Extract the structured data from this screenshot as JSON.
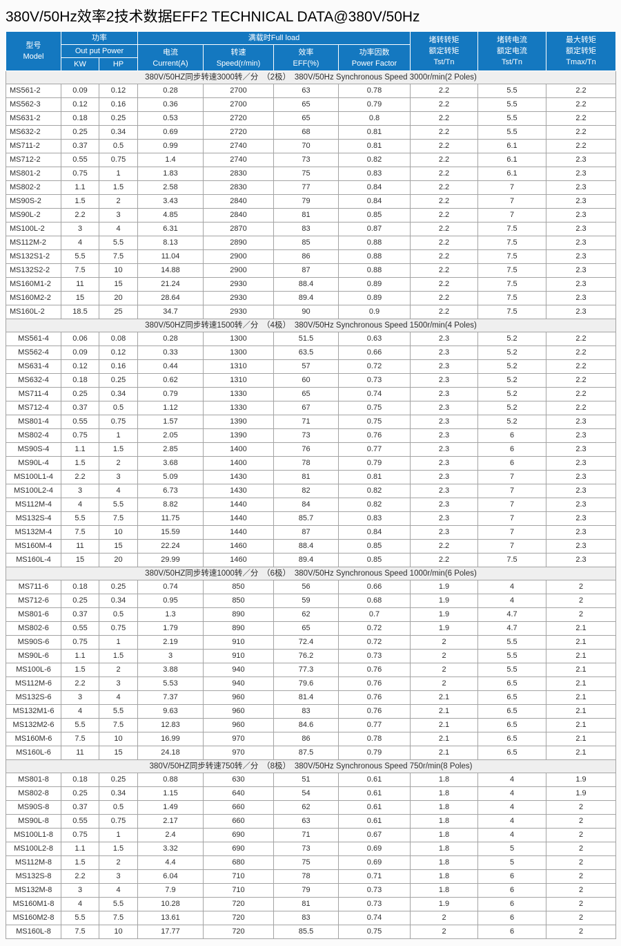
{
  "title": "380V/50Hz效率2技术数据EFF2 TECHNICAL DATA@380V/50Hz",
  "colors": {
    "header_bg": "#1478c0",
    "header_text": "#ffffff",
    "section_bg": "#efefef",
    "grid_line": "#a3a3a3"
  },
  "table": {
    "header": {
      "model": {
        "cn": "型号",
        "en": "Model"
      },
      "power": {
        "cn": "功率",
        "en": "Out put Power",
        "kw": "KW",
        "hp": "HP"
      },
      "full_load": {
        "label": "满载时Full load",
        "current": {
          "cn": "电流",
          "en": "Current(A)"
        },
        "speed": {
          "cn": "转速",
          "en": "Speed(r/min)"
        },
        "eff": {
          "cn": "效率",
          "en": "EFF(%)"
        },
        "power_factor": {
          "cn": "功率因数",
          "en": "Power Factor"
        }
      },
      "locked_rotor_torque": {
        "cn1": "堵转转矩",
        "cn2": "额定转矩",
        "en": "Tst/Tn"
      },
      "locked_rotor_current": {
        "cn1": "堵转电流",
        "cn2": "额定电流",
        "en": "Tst/Tn"
      },
      "max_torque": {
        "cn1": "最大转矩",
        "cn2": "额定转矩",
        "en": "Tmax/Tn"
      }
    },
    "sections": [
      {
        "label": "380V/50HZ同步转速3000转／分　（2极）　380V/50Hz Synchronous Speed 3000r/min(2 Poles)",
        "rows": [
          [
            "MS561-2",
            "0.09",
            "0.12",
            "0.28",
            "2700",
            "63",
            "0.78",
            "2.2",
            "5.5",
            "2.2"
          ],
          [
            "MS562-3",
            "0.12",
            "0.16",
            "0.36",
            "2700",
            "65",
            "0.79",
            "2.2",
            "5.5",
            "2.2"
          ],
          [
            "MS631-2",
            "0.18",
            "0.25",
            "0.53",
            "2720",
            "65",
            "0.8",
            "2.2",
            "5.5",
            "2.2"
          ],
          [
            "MS632-2",
            "0.25",
            "0.34",
            "0.69",
            "2720",
            "68",
            "0.81",
            "2.2",
            "5.5",
            "2.2"
          ],
          [
            "MS711-2",
            "0.37",
            "0.5",
            "0.99",
            "2740",
            "70",
            "0.81",
            "2.2",
            "6.1",
            "2.2"
          ],
          [
            "MS712-2",
            "0.55",
            "0.75",
            "1.4",
            "2740",
            "73",
            "0.82",
            "2.2",
            "6.1",
            "2.3"
          ],
          [
            "MS801-2",
            "0.75",
            "1",
            "1.83",
            "2830",
            "75",
            "0.83",
            "2.2",
            "6.1",
            "2.3"
          ],
          [
            "MS802-2",
            "1.1",
            "1.5",
            "2.58",
            "2830",
            "77",
            "0.84",
            "2.2",
            "7",
            "2.3"
          ],
          [
            "MS90S-2",
            "1.5",
            "2",
            "3.43",
            "2840",
            "79",
            "0.84",
            "2.2",
            "7",
            "2.3"
          ],
          [
            "MS90L-2",
            "2.2",
            "3",
            "4.85",
            "2840",
            "81",
            "0.85",
            "2.2",
            "7",
            "2.3"
          ],
          [
            "MS100L-2",
            "3",
            "4",
            "6.31",
            "2870",
            "83",
            "0.87",
            "2.2",
            "7.5",
            "2.3"
          ],
          [
            "MS112M-2",
            "4",
            "5.5",
            "8.13",
            "2890",
            "85",
            "0.88",
            "2.2",
            "7.5",
            "2.3"
          ],
          [
            "MS132S1-2",
            "5.5",
            "7.5",
            "11.04",
            "2900",
            "86",
            "0.88",
            "2.2",
            "7.5",
            "2.3"
          ],
          [
            "MS132S2-2",
            "7.5",
            "10",
            "14.88",
            "2900",
            "87",
            "0.88",
            "2.2",
            "7.5",
            "2.3"
          ],
          [
            "MS160M1-2",
            "11",
            "15",
            "21.24",
            "2930",
            "88.4",
            "0.89",
            "2.2",
            "7.5",
            "2.3"
          ],
          [
            "MS160M2-2",
            "15",
            "20",
            "28.64",
            "2930",
            "89.4",
            "0.89",
            "2.2",
            "7.5",
            "2.3"
          ],
          [
            "MS160L-2",
            "18.5",
            "25",
            "34.7",
            "2930",
            "90",
            "0.9",
            "2.2",
            "7.5",
            "2.3"
          ]
        ]
      },
      {
        "label": "380V/50HZ同步转速1500转／分　（4极）　380V/50Hz Synchronous Speed 1500r/min(4 Poles)",
        "rows": [
          [
            "MS561-4",
            "0.06",
            "0.08",
            "0.28",
            "1300",
            "51.5",
            "0.63",
            "2.3",
            "5.2",
            "2.2"
          ],
          [
            "MS562-4",
            "0.09",
            "0.12",
            "0.33",
            "1300",
            "63.5",
            "0.66",
            "2.3",
            "5.2",
            "2.2"
          ],
          [
            "MS631-4",
            "0.12",
            "0.16",
            "0.44",
            "1310",
            "57",
            "0.72",
            "2.3",
            "5.2",
            "2.2"
          ],
          [
            "MS632-4",
            "0.18",
            "0.25",
            "0.62",
            "1310",
            "60",
            "0.73",
            "2.3",
            "5.2",
            "2.2"
          ],
          [
            "MS711-4",
            "0.25",
            "0.34",
            "0.79",
            "1330",
            "65",
            "0.74",
            "2.3",
            "5.2",
            "2.2"
          ],
          [
            "MS712-4",
            "0.37",
            "0.5",
            "1.12",
            "1330",
            "67",
            "0.75",
            "2.3",
            "5.2",
            "2.2"
          ],
          [
            "MS801-4",
            "0.55",
            "0.75",
            "1.57",
            "1390",
            "71",
            "0.75",
            "2.3",
            "5.2",
            "2.3"
          ],
          [
            "MS802-4",
            "0.75",
            "1",
            "2.05",
            "1390",
            "73",
            "0.76",
            "2.3",
            "6",
            "2.3"
          ],
          [
            "MS90S-4",
            "1.1",
            "1.5",
            "2.85",
            "1400",
            "76",
            "0.77",
            "2.3",
            "6",
            "2.3"
          ],
          [
            "MS90L-4",
            "1.5",
            "2",
            "3.68",
            "1400",
            "78",
            "0.79",
            "2.3",
            "6",
            "2.3"
          ],
          [
            "MS100L1-4",
            "2.2",
            "3",
            "5.09",
            "1430",
            "81",
            "0.81",
            "2.3",
            "7",
            "2.3"
          ],
          [
            "MS100L2-4",
            "3",
            "4",
            "6.73",
            "1430",
            "82",
            "0.82",
            "2.3",
            "7",
            "2.3"
          ],
          [
            "MS112M-4",
            "4",
            "5.5",
            "8.82",
            "1440",
            "84",
            "0.82",
            "2.3",
            "7",
            "2.3"
          ],
          [
            "MS132S-4",
            "5.5",
            "7.5",
            "11.75",
            "1440",
            "85.7",
            "0.83",
            "2.3",
            "7",
            "2.3"
          ],
          [
            "MS132M-4",
            "7.5",
            "10",
            "15.59",
            "1440",
            "87",
            "0.84",
            "2.3",
            "7",
            "2.3"
          ],
          [
            "MS160M-4",
            "11",
            "15",
            "22.24",
            "1460",
            "88.4",
            "0.85",
            "2.2",
            "7",
            "2.3"
          ],
          [
            "MS160L-4",
            "15",
            "20",
            "29.99",
            "1460",
            "89.4",
            "0.85",
            "2.2",
            "7.5",
            "2.3"
          ]
        ]
      },
      {
        "label": "380V/50HZ同步转速1000转／分　（6极）　380V/50Hz Synchronous Speed 1000r/min(6 Poles)",
        "rows": [
          [
            "MS711-6",
            "0.18",
            "0.25",
            "0.74",
            "850",
            "56",
            "0.66",
            "1.9",
            "4",
            "2"
          ],
          [
            "MS712-6",
            "0.25",
            "0.34",
            "0.95",
            "850",
            "59",
            "0.68",
            "1.9",
            "4",
            "2"
          ],
          [
            "MS801-6",
            "0.37",
            "0.5",
            "1.3",
            "890",
            "62",
            "0.7",
            "1.9",
            "4.7",
            "2"
          ],
          [
            "MS802-6",
            "0.55",
            "0.75",
            "1.79",
            "890",
            "65",
            "0.72",
            "1.9",
            "4.7",
            "2.1"
          ],
          [
            "MS90S-6",
            "0.75",
            "1",
            "2.19",
            "910",
            "72.4",
            "0.72",
            "2",
            "5.5",
            "2.1"
          ],
          [
            "MS90L-6",
            "1.1",
            "1.5",
            "3",
            "910",
            "76.2",
            "0.73",
            "2",
            "5.5",
            "2.1"
          ],
          [
            "MS100L-6",
            "1.5",
            "2",
            "3.88",
            "940",
            "77.3",
            "0.76",
            "2",
            "5.5",
            "2.1"
          ],
          [
            "MS112M-6",
            "2.2",
            "3",
            "5.53",
            "940",
            "79.6",
            "0.76",
            "2",
            "6.5",
            "2.1"
          ],
          [
            "MS132S-6",
            "3",
            "4",
            "7.37",
            "960",
            "81.4",
            "0.76",
            "2.1",
            "6.5",
            "2.1"
          ],
          [
            "MS132M1-6",
            "4",
            "5.5",
            "9.63",
            "960",
            "83",
            "0.76",
            "2.1",
            "6.5",
            "2.1"
          ],
          [
            "MS132M2-6",
            "5.5",
            "7.5",
            "12.83",
            "960",
            "84.6",
            "0.77",
            "2.1",
            "6.5",
            "2.1"
          ],
          [
            "MS160M-6",
            "7.5",
            "10",
            "16.99",
            "970",
            "86",
            "0.78",
            "2.1",
            "6.5",
            "2.1"
          ],
          [
            "MS160L-6",
            "11",
            "15",
            "24.18",
            "970",
            "87.5",
            "0.79",
            "2.1",
            "6.5",
            "2.1"
          ]
        ]
      },
      {
        "label": "380V/50HZ同步转速750转／分　（8极）　380V/50Hz Synchronous Speed 750r/min(8 Poles)",
        "rows": [
          [
            "MS801-8",
            "0.18",
            "0.25",
            "0.88",
            "630",
            "51",
            "0.61",
            "1.8",
            "4",
            "1.9"
          ],
          [
            "MS802-8",
            "0.25",
            "0.34",
            "1.15",
            "640",
            "54",
            "0.61",
            "1.8",
            "4",
            "1.9"
          ],
          [
            "MS90S-8",
            "0.37",
            "0.5",
            "1.49",
            "660",
            "62",
            "0.61",
            "1.8",
            "4",
            "2"
          ],
          [
            "MS90L-8",
            "0.55",
            "0.75",
            "2.17",
            "660",
            "63",
            "0.61",
            "1.8",
            "4",
            "2"
          ],
          [
            "MS100L1-8",
            "0.75",
            "1",
            "2.4",
            "690",
            "71",
            "0.67",
            "1.8",
            "4",
            "2"
          ],
          [
            "MS100L2-8",
            "1.1",
            "1.5",
            "3.32",
            "690",
            "73",
            "0.69",
            "1.8",
            "5",
            "2"
          ],
          [
            "MS112M-8",
            "1.5",
            "2",
            "4.4",
            "680",
            "75",
            "0.69",
            "1.8",
            "5",
            "2"
          ],
          [
            "MS132S-8",
            "2.2",
            "3",
            "6.04",
            "710",
            "78",
            "0.71",
            "1.8",
            "6",
            "2"
          ],
          [
            "MS132M-8",
            "3",
            "4",
            "7.9",
            "710",
            "79",
            "0.73",
            "1.8",
            "6",
            "2"
          ],
          [
            "MS160M1-8",
            "4",
            "5.5",
            "10.28",
            "720",
            "81",
            "0.73",
            "1.9",
            "6",
            "2"
          ],
          [
            "MS160M2-8",
            "5.5",
            "7.5",
            "13.61",
            "720",
            "83",
            "0.74",
            "2",
            "6",
            "2"
          ],
          [
            "MS160L-8",
            "7.5",
            "10",
            "17.77",
            "720",
            "85.5",
            "0.75",
            "2",
            "6",
            "2"
          ]
        ]
      }
    ]
  }
}
